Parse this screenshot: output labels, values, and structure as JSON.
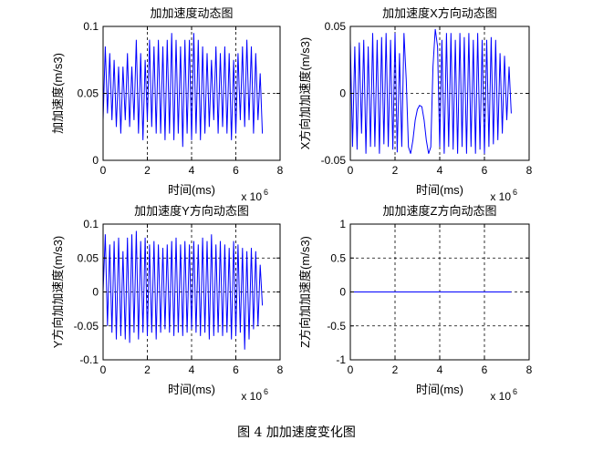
{
  "caption": "图 4  加加速度变化图",
  "chart_data": [
    {
      "type": "line",
      "title": "加加速度动态图",
      "xlabel": "时间(ms)",
      "ylabel": "加加速度(m/s3)",
      "x_multiplier": "x 10",
      "x_multiplier_exp": "6",
      "xlim": [
        0,
        8
      ],
      "ylim": [
        0,
        0.1
      ],
      "xticks": [
        "0",
        "2",
        "4",
        "6",
        "8"
      ],
      "yticks": [
        "0",
        "0.05",
        "0.1"
      ],
      "grid": true,
      "color": "#0000ff",
      "series": [
        {
          "x": [
            0.0,
            0.1,
            0.2,
            0.3,
            0.4,
            0.5,
            0.6,
            0.7,
            0.8,
            0.9,
            1.0,
            1.1,
            1.2,
            1.3,
            1.4,
            1.5,
            1.6,
            1.7,
            1.8,
            1.9,
            2.0,
            2.1,
            2.2,
            2.3,
            2.4,
            2.5,
            2.6,
            2.7,
            2.8,
            2.9,
            3.0,
            3.1,
            3.2,
            3.3,
            3.4,
            3.5,
            3.6,
            3.7,
            3.8,
            3.9,
            4.0,
            4.1,
            4.2,
            4.3,
            4.4,
            4.5,
            4.6,
            4.7,
            4.8,
            4.9,
            5.0,
            5.1,
            5.2,
            5.3,
            5.4,
            5.5,
            5.6,
            5.7,
            5.8,
            5.9,
            6.0,
            6.1,
            6.2,
            6.3,
            6.4,
            6.5,
            6.6,
            6.7,
            6.8,
            6.9,
            7.0,
            7.1,
            7.2
          ],
          "y": [
            0.03,
            0.085,
            0.035,
            0.08,
            0.03,
            0.075,
            0.025,
            0.07,
            0.02,
            0.07,
            0.03,
            0.08,
            0.025,
            0.07,
            0.03,
            0.09,
            0.02,
            0.08,
            0.015,
            0.075,
            0.03,
            0.09,
            0.025,
            0.085,
            0.02,
            0.09,
            0.02,
            0.085,
            0.015,
            0.09,
            0.02,
            0.095,
            0.015,
            0.09,
            0.02,
            0.085,
            0.01,
            0.09,
            0.02,
            0.09,
            0.015,
            0.095,
            0.02,
            0.09,
            0.015,
            0.085,
            0.02,
            0.08,
            0.025,
            0.075,
            0.03,
            0.085,
            0.02,
            0.08,
            0.025,
            0.085,
            0.02,
            0.08,
            0.015,
            0.075,
            0.02,
            0.08,
            0.03,
            0.085,
            0.025,
            0.09,
            0.03,
            0.085,
            0.02,
            0.08,
            0.03,
            0.065,
            0.02
          ]
        }
      ]
    },
    {
      "type": "line",
      "title": "加加速度X方向动态图",
      "xlabel": "时间(ms)",
      "ylabel": "X方向加加速度(m/s3)",
      "x_multiplier": "x 10",
      "x_multiplier_exp": "6",
      "xlim": [
        0,
        8
      ],
      "ylim": [
        -0.05,
        0.05
      ],
      "xticks": [
        "0",
        "2",
        "4",
        "6",
        "8"
      ],
      "yticks": [
        "-0.05",
        "0",
        "0.05"
      ],
      "grid": true,
      "color": "#0000ff",
      "series": [
        {
          "x": [
            0.0,
            0.1,
            0.2,
            0.3,
            0.4,
            0.5,
            0.6,
            0.7,
            0.8,
            0.9,
            1.0,
            1.1,
            1.2,
            1.3,
            1.4,
            1.5,
            1.6,
            1.7,
            1.8,
            1.9,
            2.0,
            2.1,
            2.2,
            2.3,
            2.4,
            2.5,
            2.6,
            2.7,
            2.8,
            2.9,
            3.0,
            3.1,
            3.2,
            3.3,
            3.4,
            3.5,
            3.6,
            3.7,
            3.8,
            3.9,
            4.0,
            4.1,
            4.2,
            4.3,
            4.4,
            4.5,
            4.6,
            4.7,
            4.8,
            4.9,
            5.0,
            5.1,
            5.2,
            5.3,
            5.4,
            5.5,
            5.6,
            5.7,
            5.8,
            5.9,
            6.0,
            6.1,
            6.2,
            6.3,
            6.4,
            6.5,
            6.6,
            6.7,
            6.8,
            6.9,
            7.0,
            7.1,
            7.2
          ],
          "y": [
            0.04,
            -0.04,
            0.035,
            -0.042,
            0.038,
            -0.03,
            0.04,
            -0.045,
            0.035,
            -0.04,
            0.045,
            -0.04,
            0.04,
            -0.045,
            0.042,
            -0.038,
            0.045,
            -0.04,
            0.04,
            -0.042,
            0.045,
            -0.044,
            0.03,
            -0.04,
            0.045,
            0.01,
            -0.04,
            -0.045,
            -0.035,
            -0.02,
            -0.012,
            -0.009,
            -0.01,
            -0.02,
            -0.035,
            -0.045,
            -0.04,
            0.02,
            0.048,
            0.035,
            -0.04,
            0.04,
            -0.045,
            0.045,
            -0.04,
            0.045,
            -0.042,
            0.04,
            -0.045,
            0.045,
            -0.04,
            0.042,
            -0.045,
            0.045,
            -0.04,
            0.04,
            -0.045,
            0.045,
            -0.042,
            0.04,
            -0.045,
            0.04,
            -0.04,
            0.042,
            -0.038,
            0.04,
            -0.035,
            0.03,
            -0.03,
            0.028,
            -0.02,
            0.02,
            -0.015
          ]
        }
      ]
    },
    {
      "type": "line",
      "title": "加加速度Y方向动态图",
      "xlabel": "时间(ms)",
      "ylabel": "Y方向加加速度(m/s3)",
      "x_multiplier": "x 10",
      "x_multiplier_exp": "6",
      "xlim": [
        0,
        8
      ],
      "ylim": [
        -0.1,
        0.1
      ],
      "xticks": [
        "0",
        "2",
        "4",
        "6",
        "8"
      ],
      "yticks": [
        "-0.1",
        "-0.05",
        "0",
        "0.05",
        "0.1"
      ],
      "grid": true,
      "color": "#0000ff",
      "series": [
        {
          "x": [
            0.0,
            0.1,
            0.2,
            0.3,
            0.4,
            0.5,
            0.6,
            0.7,
            0.8,
            0.9,
            1.0,
            1.1,
            1.2,
            1.3,
            1.4,
            1.5,
            1.6,
            1.7,
            1.8,
            1.9,
            2.0,
            2.1,
            2.2,
            2.3,
            2.4,
            2.5,
            2.6,
            2.7,
            2.8,
            2.9,
            3.0,
            3.1,
            3.2,
            3.3,
            3.4,
            3.5,
            3.6,
            3.7,
            3.8,
            3.9,
            4.0,
            4.1,
            4.2,
            4.3,
            4.4,
            4.5,
            4.6,
            4.7,
            4.8,
            4.9,
            5.0,
            5.1,
            5.2,
            5.3,
            5.4,
            5.5,
            5.6,
            5.7,
            5.8,
            5.9,
            6.0,
            6.1,
            6.2,
            6.3,
            6.4,
            6.5,
            6.6,
            6.7,
            6.8,
            6.9,
            7.0,
            7.1,
            7.2
          ],
          "y": [
            0.0,
            0.085,
            -0.05,
            0.07,
            -0.06,
            0.075,
            -0.07,
            0.08,
            -0.065,
            0.06,
            -0.07,
            0.08,
            -0.075,
            0.085,
            -0.06,
            0.09,
            -0.07,
            0.075,
            -0.06,
            0.08,
            -0.065,
            0.07,
            -0.06,
            0.075,
            -0.07,
            0.07,
            -0.06,
            0.065,
            -0.055,
            0.07,
            -0.06,
            0.075,
            -0.065,
            0.08,
            -0.06,
            0.07,
            -0.065,
            0.075,
            -0.06,
            0.07,
            -0.055,
            0.075,
            -0.06,
            0.07,
            -0.065,
            0.08,
            -0.06,
            0.075,
            -0.07,
            0.085,
            -0.065,
            0.07,
            -0.06,
            0.075,
            -0.065,
            0.07,
            -0.06,
            0.065,
            -0.07,
            0.075,
            -0.065,
            0.07,
            -0.06,
            0.065,
            -0.085,
            0.06,
            -0.07,
            0.065,
            -0.055,
            0.06,
            -0.05,
            0.04,
            -0.02
          ]
        }
      ]
    },
    {
      "type": "line",
      "title": "加加速度Z方向动态图",
      "xlabel": "时间(ms)",
      "ylabel": "Z方向加加速度(m/s3)",
      "x_multiplier": "x 10",
      "x_multiplier_exp": "6",
      "xlim": [
        0,
        8
      ],
      "ylim": [
        -1,
        1
      ],
      "xticks": [
        "0",
        "2",
        "4",
        "6",
        "8"
      ],
      "yticks": [
        "-1",
        "-0.5",
        "0",
        "0.5",
        "1"
      ],
      "grid": true,
      "color": "#0000ff",
      "series": [
        {
          "x": [
            0.0,
            7.2
          ],
          "y": [
            0,
            0
          ]
        }
      ]
    }
  ]
}
